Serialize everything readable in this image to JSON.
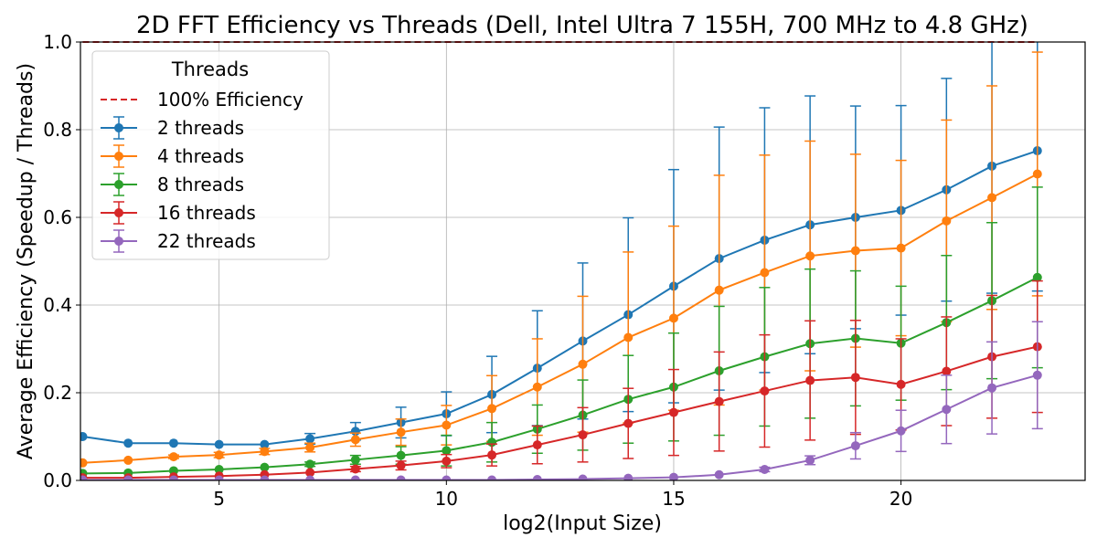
{
  "chart_data": {
    "type": "line",
    "title": "2D FFT Efficiency vs Threads (Dell, Intel Ultra 7 155H, 700 MHz to 4.8 GHz)",
    "xlabel": "log2(Input Size)",
    "ylabel": "Average Efficiency (Speedup / Threads)",
    "xlim": [
      1.95,
      24.05
    ],
    "ylim": [
      0,
      1.0
    ],
    "xticks": [
      5,
      10,
      15,
      20
    ],
    "yticks": [
      0.0,
      0.2,
      0.4,
      0.6,
      0.8,
      1.0
    ],
    "grid": true,
    "legend": {
      "title": "Threads",
      "placement": "upper-left"
    },
    "reference_line": {
      "name": "100% Efficiency",
      "y": 1.0,
      "color": "#d62728",
      "style": "dashed"
    },
    "x": [
      2,
      3,
      4,
      5,
      6,
      7,
      8,
      9,
      10,
      11,
      12,
      13,
      14,
      15,
      16,
      17,
      18,
      19,
      20,
      21,
      22,
      23
    ],
    "series": [
      {
        "name": "2 threads",
        "color": "#1f77b4",
        "values": [
          0.1,
          0.085,
          0.085,
          0.082,
          0.082,
          0.095,
          0.112,
          0.132,
          0.152,
          0.196,
          0.256,
          0.318,
          0.378,
          0.443,
          0.506,
          0.548,
          0.583,
          0.6,
          0.616,
          0.663,
          0.717,
          0.752
        ],
        "err": [
          0,
          0,
          0,
          0,
          0,
          0.012,
          0.02,
          0.035,
          0.05,
          0.087,
          0.131,
          0.178,
          0.221,
          0.266,
          0.3,
          0.302,
          0.294,
          0.254,
          0.239,
          0.254,
          0.29,
          0.32
        ]
      },
      {
        "name": "4 threads",
        "color": "#ff7f0e",
        "values": [
          0.04,
          0.046,
          0.054,
          0.058,
          0.066,
          0.075,
          0.093,
          0.11,
          0.126,
          0.164,
          0.213,
          0.265,
          0.326,
          0.37,
          0.434,
          0.474,
          0.512,
          0.524,
          0.53,
          0.592,
          0.645,
          0.699
        ],
        "err": [
          0,
          0,
          0.004,
          0.006,
          0.007,
          0.01,
          0.015,
          0.03,
          0.045,
          0.075,
          0.11,
          0.155,
          0.195,
          0.21,
          0.262,
          0.268,
          0.262,
          0.22,
          0.2,
          0.23,
          0.255,
          0.278
        ]
      },
      {
        "name": "8 threads",
        "color": "#2ca02c",
        "values": [
          0.016,
          0.017,
          0.022,
          0.025,
          0.03,
          0.037,
          0.047,
          0.057,
          0.068,
          0.087,
          0.117,
          0.149,
          0.185,
          0.213,
          0.25,
          0.282,
          0.312,
          0.324,
          0.313,
          0.36,
          0.41,
          0.463
        ],
        "err": [
          0,
          0,
          0,
          0,
          0,
          0.005,
          0.01,
          0.02,
          0.035,
          0.045,
          0.055,
          0.08,
          0.1,
          0.123,
          0.147,
          0.158,
          0.17,
          0.154,
          0.13,
          0.153,
          0.178,
          0.206
        ]
      },
      {
        "name": "16 threads",
        "color": "#d62728",
        "values": [
          0.006,
          0.006,
          0.008,
          0.01,
          0.013,
          0.018,
          0.026,
          0.034,
          0.044,
          0.058,
          0.081,
          0.104,
          0.13,
          0.155,
          0.18,
          0.204,
          0.228,
          0.235,
          0.219,
          0.249,
          0.282,
          0.305
        ],
        "err": [
          0,
          0,
          0,
          0,
          0,
          0,
          0.006,
          0.01,
          0.015,
          0.025,
          0.043,
          0.062,
          0.08,
          0.098,
          0.113,
          0.128,
          0.136,
          0.13,
          0.104,
          0.124,
          0.14,
          0.15
        ]
      },
      {
        "name": "22 threads",
        "color": "#9467bd",
        "values": [
          0.001,
          0.001,
          0.001,
          0.001,
          0.001,
          0.001,
          0.001,
          0.001,
          0.001,
          0.001,
          0.002,
          0.003,
          0.005,
          0.007,
          0.013,
          0.025,
          0.046,
          0.079,
          0.113,
          0.162,
          0.211,
          0.24
        ],
        "err": [
          0,
          0,
          0,
          0,
          0,
          0,
          0,
          0,
          0,
          0,
          0,
          0,
          0,
          0,
          0,
          0.005,
          0.01,
          0.03,
          0.047,
          0.078,
          0.105,
          0.122
        ]
      }
    ]
  }
}
